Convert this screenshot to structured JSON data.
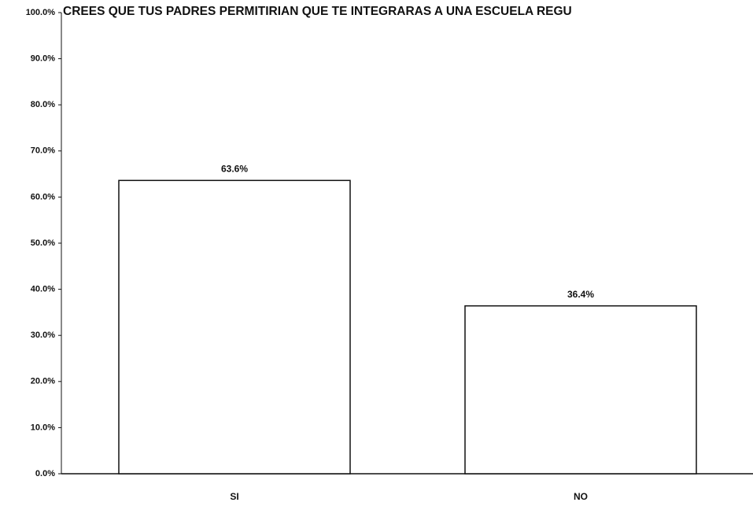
{
  "chart_data": {
    "type": "bar",
    "title": "CREES QUE TUS PADRES PERMITIRIAN QUE TE INTEGRARAS A UNA ESCUELA REGU",
    "categories": [
      "SI",
      "NO"
    ],
    "values": [
      63.6,
      36.4
    ],
    "value_labels": [
      "63.6%",
      "36.4%"
    ],
    "color": "#ffffff",
    "ylim": [
      0,
      100
    ],
    "yticks": [
      {
        "value": 0,
        "label": "0.0%"
      },
      {
        "value": 10,
        "label": "10.0%"
      },
      {
        "value": 20,
        "label": "20.0%"
      },
      {
        "value": 30,
        "label": "30.0%"
      },
      {
        "value": 40,
        "label": "40.0%"
      },
      {
        "value": 50,
        "label": "50.0%"
      },
      {
        "value": 60,
        "label": "60.0%"
      },
      {
        "value": 70,
        "label": "70.0%"
      },
      {
        "value": 80,
        "label": "80.0%"
      },
      {
        "value": 90,
        "label": "90.0%"
      },
      {
        "value": 100,
        "label": "100.0%"
      }
    ],
    "grid": false
  }
}
